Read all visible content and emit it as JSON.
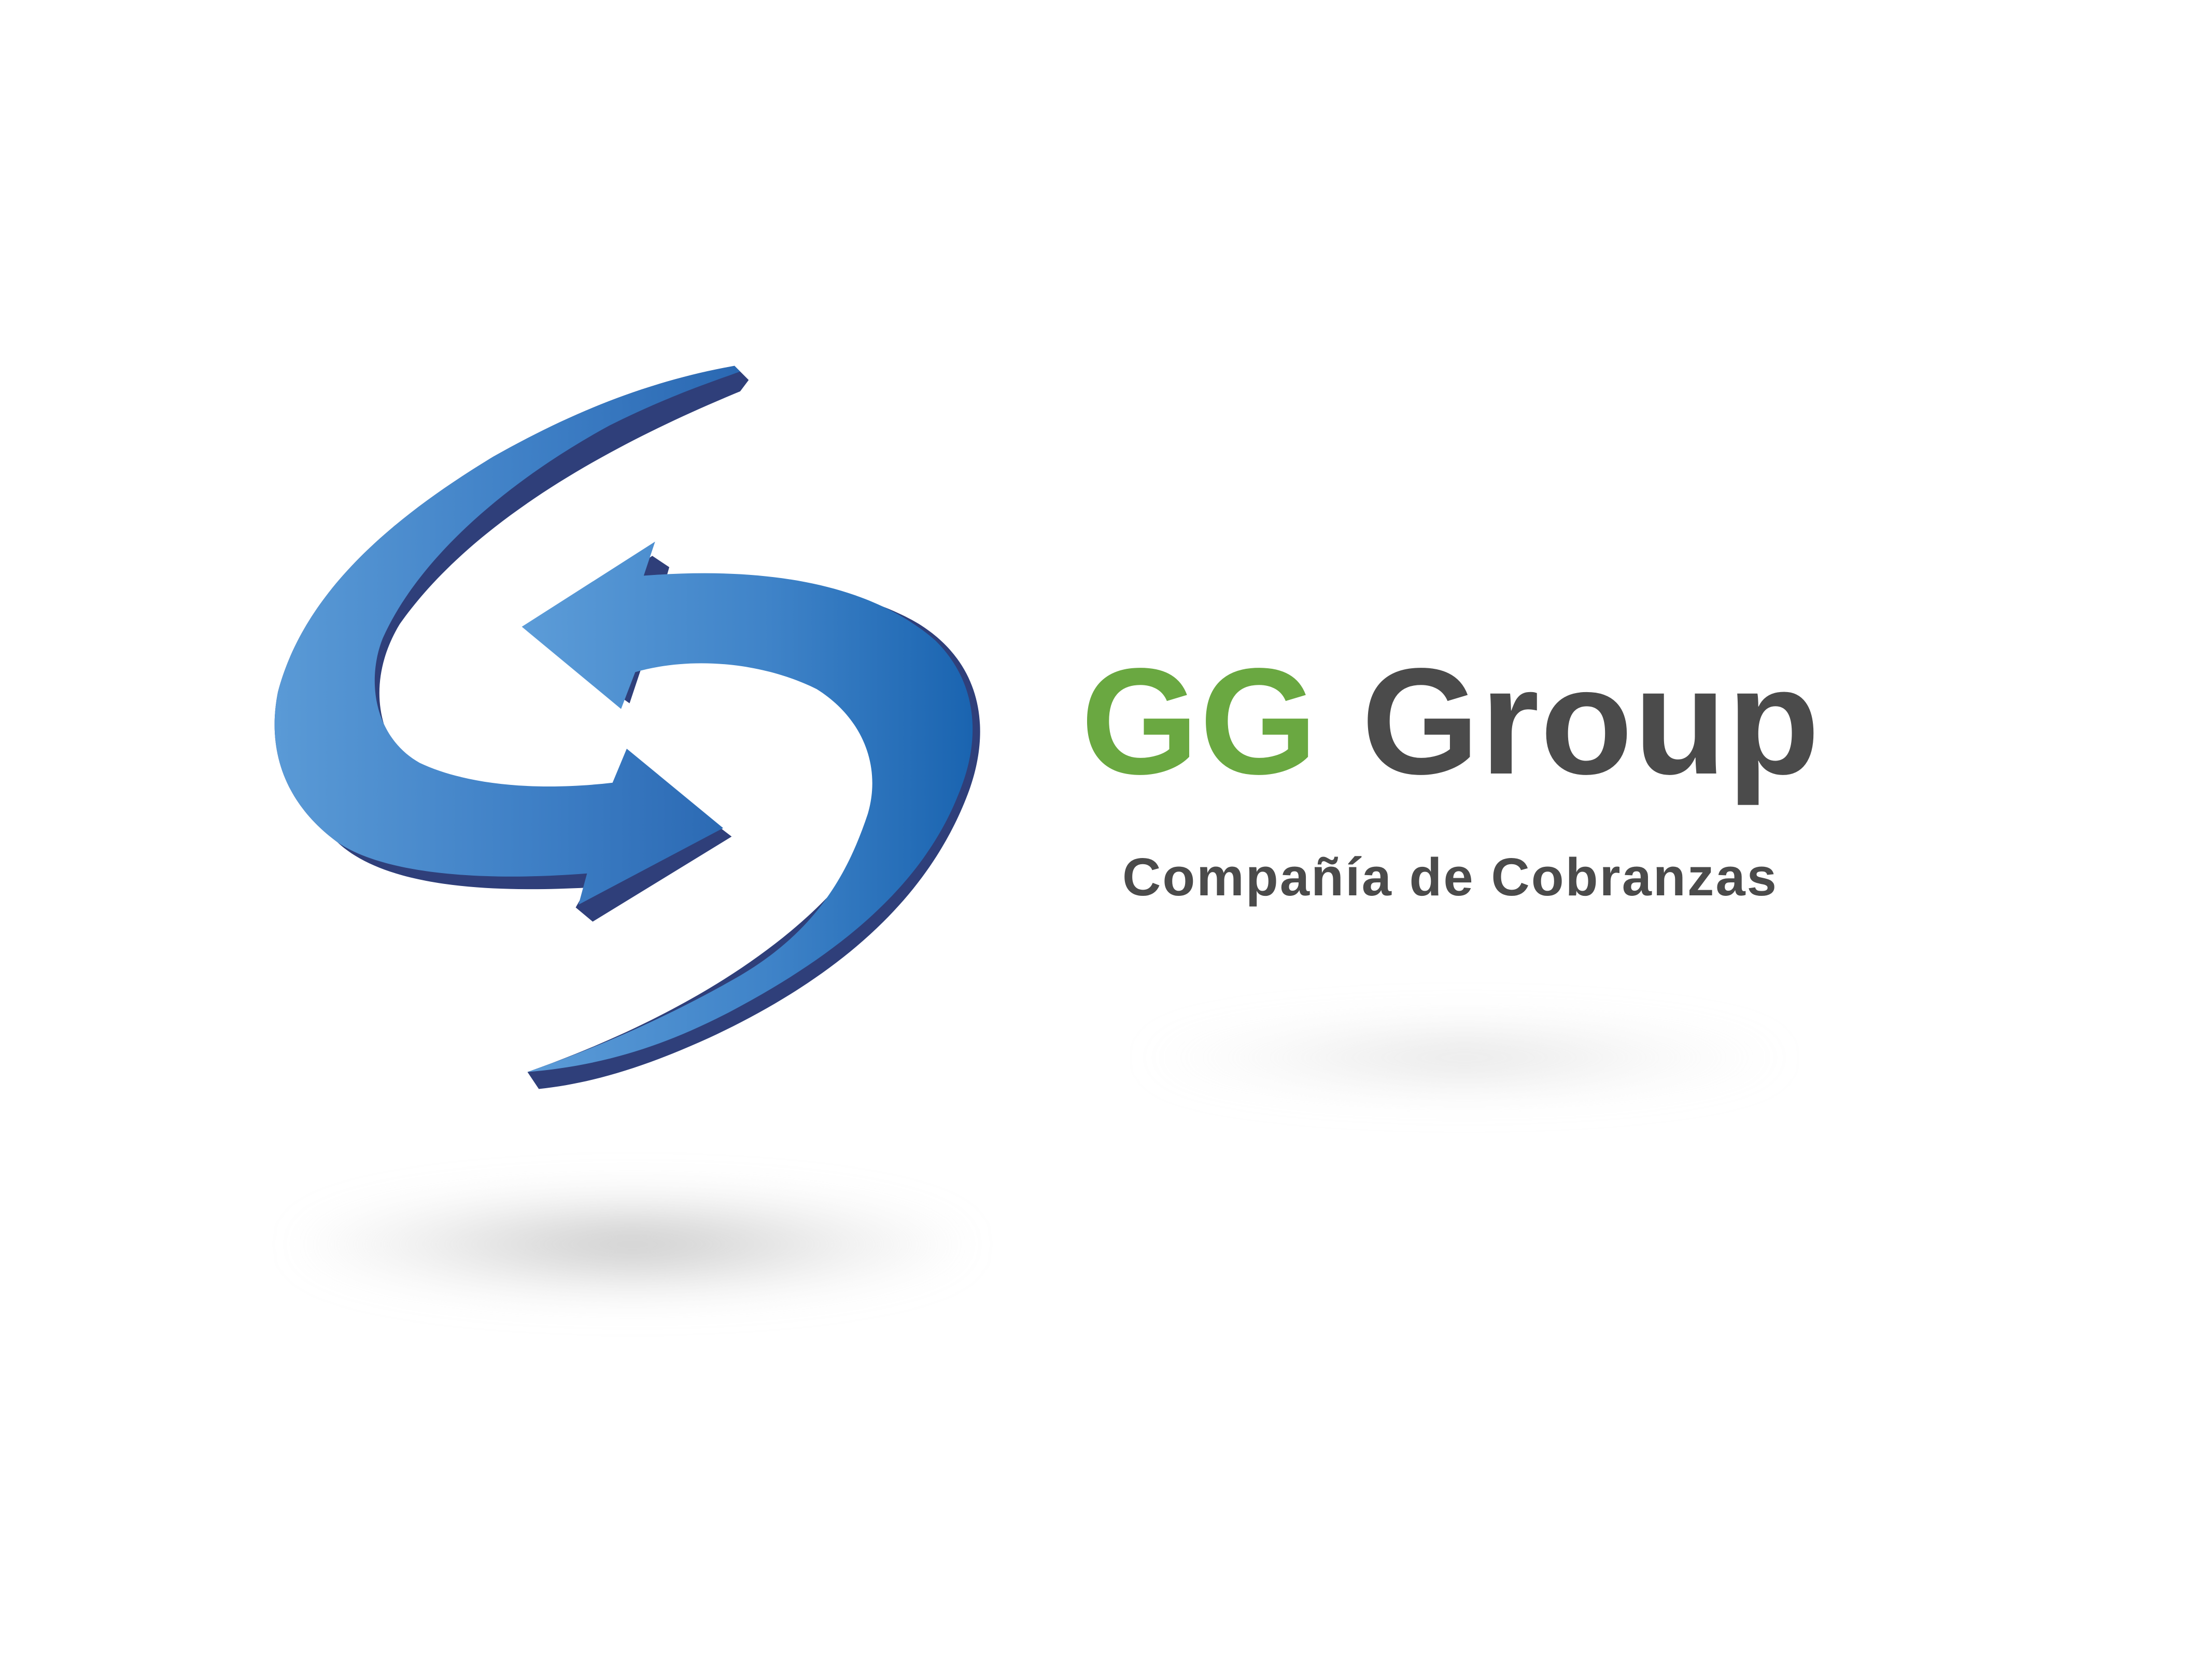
{
  "brand": {
    "name_part1": "GG",
    "name_part2": "Group",
    "tagline": "Compañía de Cobranzas"
  },
  "colors": {
    "accent_green": "#6aa841",
    "text_gray": "#4b4b4b",
    "arrow_light_blue": "#5a9ad6",
    "arrow_dark_blue": "#1a64b0",
    "arrow_edge_navy": "#2f3f7a",
    "background": "#ffffff"
  },
  "icons": {
    "logo_mark": "circular-arrows-icon"
  }
}
